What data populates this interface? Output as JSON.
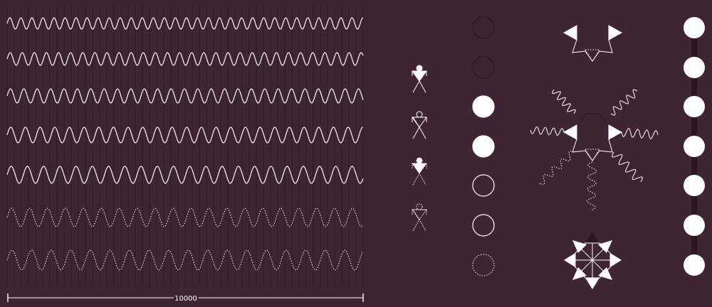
{
  "colors": {
    "background": "#3f2433",
    "grid": "#2c1622",
    "stroke": "#ffffff",
    "dark_fill": "#3a1e2c"
  },
  "scale_bar": {
    "label": "10000"
  },
  "waves": {
    "count": 7,
    "styles": [
      "solid",
      "solid",
      "solid",
      "solid",
      "solid",
      "dotted",
      "dotted"
    ]
  },
  "stick_figures": {
    "styles": [
      "solid-filled-head",
      "solid-open-head",
      "dotted-legs",
      "dotted"
    ]
  },
  "status_circles": {
    "states": [
      "dark",
      "dark",
      "filled",
      "filled",
      "outline",
      "outline",
      "dotted-outline"
    ]
  },
  "indicator_dots": {
    "count": 7
  }
}
